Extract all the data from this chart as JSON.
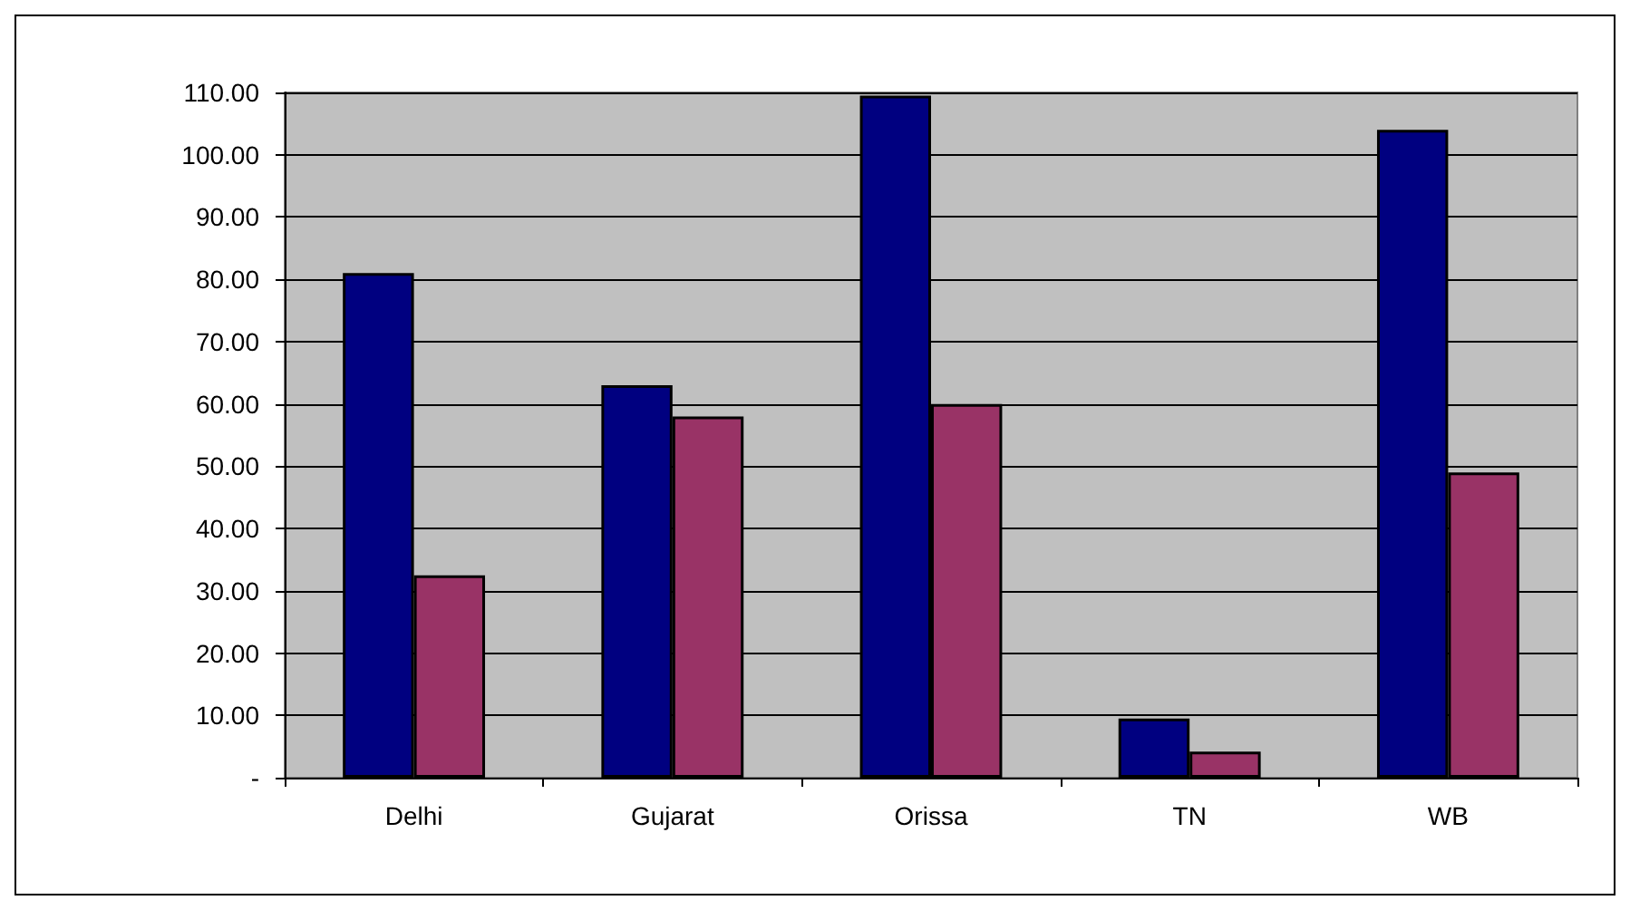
{
  "chart_data": {
    "type": "bar",
    "categories": [
      "Delhi",
      "Gujarat",
      "Orissa",
      "TN",
      "WB"
    ],
    "series": [
      {
        "color": "#000080",
        "values": [
          81,
          63,
          109.5,
          9.5,
          104
        ]
      },
      {
        "color": "#993366",
        "values": [
          32.5,
          58,
          60,
          4.2,
          49
        ]
      }
    ],
    "ylim": [
      0,
      110
    ],
    "yticks": [
      {
        "value": 0,
        "label": "-"
      },
      {
        "value": 10,
        "label": "10.00"
      },
      {
        "value": 20,
        "label": "20.00"
      },
      {
        "value": 30,
        "label": "30.00"
      },
      {
        "value": 40,
        "label": "40.00"
      },
      {
        "value": 50,
        "label": "50.00"
      },
      {
        "value": 60,
        "label": "60.00"
      },
      {
        "value": 70,
        "label": "70.00"
      },
      {
        "value": 80,
        "label": "80.00"
      },
      {
        "value": 90,
        "label": "90.00"
      },
      {
        "value": 100,
        "label": "100.00"
      },
      {
        "value": 110,
        "label": "110.00"
      }
    ],
    "grid": "y"
  }
}
